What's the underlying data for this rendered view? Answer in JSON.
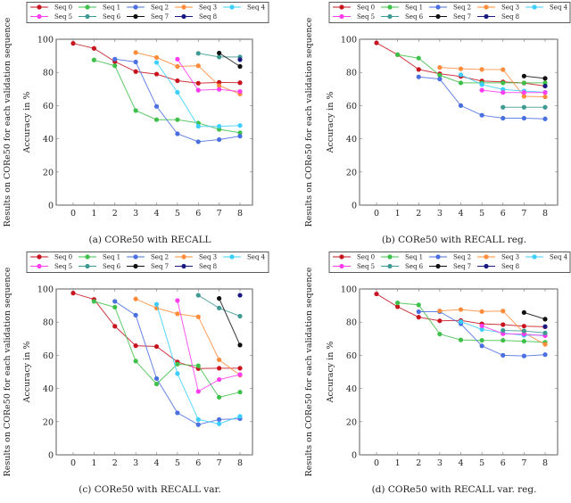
{
  "colors": {
    "Seq 0": "#c8141e",
    "Seq 1": "#3fc04a",
    "Seq 2": "#4a6fe0",
    "Seq 3": "#ff8c3a",
    "Seq 4": "#3ccfff",
    "Seq 5": "#ff3cf0",
    "Seq 6": "#3f9a94",
    "Seq 7": "#111111",
    "Seq 8": "#1a1a80"
  },
  "chart_data": [
    {
      "type": "line",
      "title": "(a) CORe50 with RECALL",
      "xlabel": "",
      "ylabel": "Accuracy in %",
      "ylabel_outer": "Results on CORe50 for each validation sequence",
      "xlim": [
        0,
        8
      ],
      "ylim": [
        0,
        100
      ],
      "xticks": [
        "0",
        "1",
        "2",
        "3",
        "4",
        "5",
        "6",
        "7",
        "8"
      ],
      "yticks": [
        "0",
        "20",
        "40",
        "60",
        "80",
        "100"
      ],
      "grid": false,
      "legend": "top",
      "series": [
        {
          "name": "Seq 0",
          "x": [
            0,
            1,
            2,
            3,
            4,
            5,
            6,
            7,
            8
          ],
          "y": [
            97.5,
            94.5,
            86.5,
            80.5,
            79,
            75,
            73.5,
            74,
            73.8
          ]
        },
        {
          "name": "Seq 1",
          "x": [
            1,
            2,
            3,
            4,
            5,
            6,
            7,
            8
          ],
          "y": [
            87.5,
            84,
            57,
            51.5,
            51.5,
            49.5,
            45.7,
            43.6
          ]
        },
        {
          "name": "Seq 2",
          "x": [
            2,
            3,
            4,
            5,
            6,
            7,
            8
          ],
          "y": [
            88,
            86.3,
            59.5,
            43,
            38.2,
            39.5,
            41.6
          ]
        },
        {
          "name": "Seq 3",
          "x": [
            3,
            4,
            5,
            6,
            7,
            8
          ],
          "y": [
            92,
            89,
            83.6,
            84,
            72,
            67
          ]
        },
        {
          "name": "Seq 4",
          "x": [
            4,
            5,
            6,
            7,
            8
          ],
          "y": [
            86,
            68,
            47.5,
            47.5,
            48
          ]
        },
        {
          "name": "Seq 5",
          "x": [
            5,
            6,
            7,
            8
          ],
          "y": [
            88,
            69.3,
            69.8,
            68.5
          ]
        },
        {
          "name": "Seq 6",
          "x": [
            6,
            7,
            8
          ],
          "y": [
            91.5,
            89.3,
            89.3
          ]
        },
        {
          "name": "Seq 7",
          "x": [
            7,
            8
          ],
          "y": [
            91.7,
            83.6
          ]
        },
        {
          "name": "Seq 8",
          "x": [
            8
          ],
          "y": [
            87.7
          ]
        }
      ]
    },
    {
      "type": "line",
      "title": "(b) CORe50 with RECALL reg.",
      "xlabel": "",
      "ylabel": "Accuracy in %",
      "ylabel_outer": "Results on CORe50 for each validation sequence",
      "xlim": [
        0,
        8
      ],
      "ylim": [
        0,
        100
      ],
      "xticks": [
        "0",
        "1",
        "2",
        "3",
        "4",
        "5",
        "6",
        "7",
        "8"
      ],
      "yticks": [
        "0",
        "20",
        "40",
        "60",
        "80",
        "100"
      ],
      "grid": false,
      "legend": "top",
      "series": [
        {
          "name": "Seq 0",
          "x": [
            0,
            1,
            2,
            3,
            4,
            5,
            6,
            7,
            8
          ],
          "y": [
            97.8,
            90.7,
            81.8,
            79.2,
            77.6,
            74.8,
            74.3,
            73.6,
            71.8
          ]
        },
        {
          "name": "Seq 1",
          "x": [
            1,
            2,
            3,
            4,
            5,
            6,
            7,
            8
          ],
          "y": [
            90.7,
            88.6,
            78.3,
            73.7,
            73.7,
            73.7,
            73.7,
            73.7
          ]
        },
        {
          "name": "Seq 2",
          "x": [
            2,
            3,
            4,
            5,
            6,
            7,
            8
          ],
          "y": [
            77.3,
            76,
            60,
            54.2,
            52.4,
            52.4,
            52
          ]
        },
        {
          "name": "Seq 3",
          "x": [
            3,
            4,
            5,
            6,
            7,
            8
          ],
          "y": [
            83,
            82.2,
            81.8,
            81.7,
            65.6,
            65.3
          ]
        },
        {
          "name": "Seq 4",
          "x": [
            4,
            5,
            6,
            7,
            8
          ],
          "y": [
            78.6,
            72.7,
            69.8,
            68.8,
            68
          ]
        },
        {
          "name": "Seq 5",
          "x": [
            5,
            6,
            7,
            8
          ],
          "y": [
            69.3,
            67.9,
            67.9,
            67.9
          ]
        },
        {
          "name": "Seq 6",
          "x": [
            6,
            7,
            8
          ],
          "y": [
            59,
            59,
            59
          ]
        },
        {
          "name": "Seq 7",
          "x": [
            7,
            8
          ],
          "y": [
            77.8,
            76.4
          ]
        },
        {
          "name": "Seq 8",
          "x": [
            8
          ],
          "y": [
            71.8
          ]
        }
      ]
    },
    {
      "type": "line",
      "title": "(c) CORe50 with RECALL var.",
      "xlabel": "",
      "ylabel": "Accuracy in %",
      "ylabel_outer": "Results on CORe50 for each validation sequence",
      "xlim": [
        0,
        8
      ],
      "ylim": [
        0,
        100
      ],
      "xticks": [
        "0",
        "1",
        "2",
        "3",
        "4",
        "5",
        "6",
        "7",
        "8"
      ],
      "yticks": [
        "0",
        "20",
        "40",
        "60",
        "80",
        "100"
      ],
      "grid": false,
      "legend": "top",
      "series": [
        {
          "name": "Seq 0",
          "x": [
            0,
            1,
            2,
            3,
            4,
            5,
            6,
            7,
            8
          ],
          "y": [
            97.5,
            93.7,
            77.5,
            65.8,
            65.3,
            56,
            52,
            52.2,
            52.2
          ]
        },
        {
          "name": "Seq 1",
          "x": [
            1,
            2,
            3,
            4,
            5,
            6,
            7,
            8
          ],
          "y": [
            92.5,
            89,
            56.5,
            42.7,
            54.7,
            53.7,
            34.7,
            37.8
          ]
        },
        {
          "name": "Seq 2",
          "x": [
            2,
            3,
            4,
            5,
            6,
            7,
            8
          ],
          "y": [
            92.5,
            84.2,
            46,
            25.3,
            18.2,
            21.3,
            21.8
          ]
        },
        {
          "name": "Seq 3",
          "x": [
            3,
            4,
            5,
            6,
            7,
            8
          ],
          "y": [
            94,
            88.5,
            85,
            83.2,
            57.3,
            48
          ]
        },
        {
          "name": "Seq 4",
          "x": [
            4,
            5,
            6,
            7,
            8
          ],
          "y": [
            90.8,
            49,
            21.3,
            18.7,
            23.2
          ]
        },
        {
          "name": "Seq 5",
          "x": [
            5,
            6,
            7,
            8
          ],
          "y": [
            93,
            38.2,
            45.4,
            48.4
          ]
        },
        {
          "name": "Seq 6",
          "x": [
            6,
            7,
            8
          ],
          "y": [
            96.2,
            88.5,
            83.6
          ]
        },
        {
          "name": "Seq 7",
          "x": [
            7,
            8
          ],
          "y": [
            94.3,
            66.2
          ]
        },
        {
          "name": "Seq 8",
          "x": [
            8
          ],
          "y": [
            96.2
          ]
        }
      ]
    },
    {
      "type": "line",
      "title": "(d) CORe50 with RECALL var. reg.",
      "xlabel": "",
      "ylabel": "Accuracy in %",
      "ylabel_outer": "Results on CORe50 for each validation sequence",
      "xlim": [
        0,
        8
      ],
      "ylim": [
        0,
        100
      ],
      "xticks": [
        "0",
        "1",
        "2",
        "3",
        "4",
        "5",
        "6",
        "7",
        "8"
      ],
      "yticks": [
        "0",
        "20",
        "40",
        "60",
        "80",
        "100"
      ],
      "grid": false,
      "legend": "top",
      "series": [
        {
          "name": "Seq 0",
          "x": [
            0,
            1,
            2,
            3,
            4,
            5,
            6,
            7,
            8
          ],
          "y": [
            97,
            89.3,
            83,
            80.8,
            81,
            79,
            78.5,
            77.6,
            77.2
          ]
        },
        {
          "name": "Seq 1",
          "x": [
            1,
            2,
            3,
            4,
            5,
            6,
            7,
            8
          ],
          "y": [
            91.6,
            90.4,
            72.8,
            69.3,
            69,
            69,
            68.5,
            67.8
          ]
        },
        {
          "name": "Seq 2",
          "x": [
            2,
            3,
            4,
            5,
            6,
            7,
            8
          ],
          "y": [
            86.3,
            86.3,
            79,
            65.7,
            60,
            59.6,
            60.4
          ]
        },
        {
          "name": "Seq 3",
          "x": [
            3,
            4,
            5,
            6,
            7,
            8
          ],
          "y": [
            86.8,
            87.6,
            86.4,
            86.7,
            73.5,
            66.6
          ]
        },
        {
          "name": "Seq 4",
          "x": [
            4,
            5,
            6,
            7,
            8
          ],
          "y": [
            80.3,
            75.6,
            73.5,
            72,
            72.3
          ]
        },
        {
          "name": "Seq 5",
          "x": [
            5,
            6,
            7,
            8
          ],
          "y": [
            77.8,
            73,
            72.8,
            71.8
          ]
        },
        {
          "name": "Seq 6",
          "x": [
            6,
            7,
            8
          ],
          "y": [
            75,
            74.7,
            73.5
          ]
        },
        {
          "name": "Seq 7",
          "x": [
            7,
            8
          ],
          "y": [
            85.8,
            81.8
          ]
        },
        {
          "name": "Seq 8",
          "x": [
            8
          ],
          "y": [
            77.3
          ]
        }
      ]
    }
  ]
}
